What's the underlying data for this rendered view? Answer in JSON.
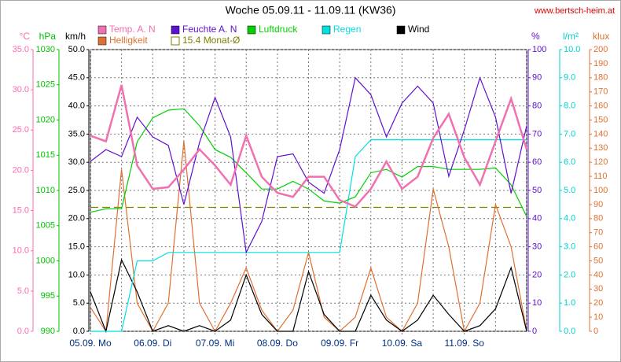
{
  "chart_data": {
    "type": "line",
    "title": "Woche 05.09.11 - 11.09.11 (KW36)",
    "source": "www.bertsch-heim.at",
    "x": [
      0,
      6,
      12,
      18,
      24,
      30,
      36,
      42,
      48,
      54,
      60,
      66,
      72,
      78,
      84,
      90,
      96,
      102,
      108,
      114,
      120,
      126,
      132,
      138,
      144,
      150,
      156,
      162,
      168
    ],
    "xlim": [
      0,
      168
    ],
    "xticks": [
      {
        "value": 0,
        "label": "05.09. Mo"
      },
      {
        "value": 24,
        "label": "06.09. Di"
      },
      {
        "value": 48,
        "label": "07.09. Mi"
      },
      {
        "value": 72,
        "label": "08.09. Do"
      },
      {
        "value": 96,
        "label": "09.09. Fr"
      },
      {
        "value": 120,
        "label": "10.09. Sa"
      },
      {
        "value": 144,
        "label": "11.09. So"
      }
    ],
    "xgrid": [
      12,
      36,
      60,
      84,
      108,
      132,
      156,
      168
    ],
    "grid": true,
    "grid_axis": 2,
    "axes": [
      {
        "label": "°C",
        "color": "#ff69b4",
        "lim": [
          0,
          35
        ],
        "ticks": [
          {
            "value": 0,
            "label": "0.0"
          },
          {
            "value": 5,
            "label": "5.0"
          },
          {
            "value": 10,
            "label": "10.0"
          },
          {
            "value": 15,
            "label": "15.0"
          },
          {
            "value": 20,
            "label": "20.0"
          },
          {
            "value": 25,
            "label": "25.0"
          },
          {
            "value": 30,
            "label": "30.0"
          },
          {
            "value": 35,
            "label": "35.0"
          }
        ]
      },
      {
        "label": "hPa",
        "color": "#00c000",
        "lim": [
          990,
          1030
        ],
        "ticks": [
          990,
          995,
          1000,
          1005,
          1010,
          1015,
          1020,
          1025,
          1030
        ]
      },
      {
        "label": "km/h",
        "color": "#000000",
        "lim": [
          0,
          50
        ],
        "ticks": [
          {
            "value": 0,
            "label": "0.0"
          },
          {
            "value": 5,
            "label": "5.0"
          },
          {
            "value": 10,
            "label": "10.0"
          },
          {
            "value": 15,
            "label": "15.0"
          },
          {
            "value": 20,
            "label": "20.0"
          },
          {
            "value": 25,
            "label": "25.0"
          },
          {
            "value": 30,
            "label": "30.0"
          },
          {
            "value": 35,
            "label": "35.0"
          },
          {
            "value": 40,
            "label": "40.0"
          },
          {
            "value": 45,
            "label": "45.0"
          },
          {
            "value": 50,
            "label": "50.0"
          }
        ]
      },
      {
        "label": "%",
        "color": "#6010d0",
        "lim": [
          0,
          100
        ],
        "ticks": [
          0,
          10,
          20,
          30,
          40,
          50,
          60,
          70,
          80,
          90,
          100
        ]
      },
      {
        "label": "l/m²",
        "color": "#00d0d0",
        "lim": [
          0,
          10
        ],
        "ticks": [
          {
            "value": 0,
            "label": "0.0"
          },
          {
            "value": 1,
            "label": "1.0"
          },
          {
            "value": 2,
            "label": "2.0"
          },
          {
            "value": 3,
            "label": "3.0"
          },
          {
            "value": 4,
            "label": "4.0"
          },
          {
            "value": 5,
            "label": "5.0"
          },
          {
            "value": 6,
            "label": "6.0"
          },
          {
            "value": 7,
            "label": "7.0"
          },
          {
            "value": 8,
            "label": "8.0"
          },
          {
            "value": 9,
            "label": "9.0"
          },
          {
            "value": 10,
            "label": "10.0"
          }
        ]
      },
      {
        "label": "klux",
        "color": "#e07030",
        "lim": [
          0,
          200
        ],
        "ticks": [
          0,
          10,
          20,
          30,
          40,
          50,
          60,
          70,
          80,
          90,
          100,
          110,
          120,
          130,
          140,
          150,
          160,
          170,
          180,
          190,
          200
        ]
      }
    ],
    "series": [
      {
        "name": "Temp. A. N",
        "color": "#f070b0",
        "axis": 0,
        "values": [
          24.3,
          23.6,
          30.6,
          20.6,
          17.7,
          17.9,
          20.1,
          22.6,
          20.6,
          18.2,
          24.3,
          19.2,
          17.2,
          16.7,
          19.2,
          19.2,
          16.3,
          15.5,
          17.7,
          21.1,
          17.7,
          19.2,
          24.0,
          27.0,
          21.6,
          18.2,
          23.6,
          28.9,
          22.6
        ]
      },
      {
        "name": "Feuchte A. N",
        "color": "#6010d0",
        "axis": 3,
        "values": [
          60.3,
          64.5,
          62,
          76,
          69,
          66,
          45,
          67,
          83,
          69,
          28,
          39,
          62,
          63,
          53,
          49,
          64.5,
          90,
          84,
          69,
          81,
          87,
          81,
          55,
          71.5,
          90,
          76,
          49,
          73
        ]
      },
      {
        "name": "Luftdruck",
        "color": "#00d000",
        "axis": 1,
        "values": [
          1006.9,
          1007.4,
          1007.4,
          1016.9,
          1020.3,
          1021.4,
          1021.6,
          1019.2,
          1015.8,
          1014.7,
          1012.5,
          1010.2,
          1010.2,
          1011.3,
          1010.2,
          1008.5,
          1008.2,
          1009.1,
          1012.5,
          1013,
          1011.9,
          1013.4,
          1013.4,
          1013,
          1013,
          1013,
          1013.2,
          1010.8,
          1006.3
        ]
      },
      {
        "name": "Regen",
        "color": "#00e0e0",
        "axis": 4,
        "values": [
          0,
          0,
          0,
          2.5,
          2.5,
          2.8,
          2.8,
          2.8,
          2.8,
          2.8,
          2.8,
          2.8,
          2.8,
          2.8,
          2.8,
          2.8,
          2.8,
          6.2,
          6.8,
          6.8,
          6.8,
          6.8,
          6.8,
          6.8,
          6.8,
          6.8,
          6.8,
          6.8,
          6.8
        ]
      },
      {
        "name": "Wind",
        "color": "#000000",
        "axis": 2,
        "values": [
          7,
          0,
          12.7,
          7,
          0,
          1,
          0,
          1,
          0,
          2,
          10,
          3,
          0,
          0,
          10.6,
          3,
          0,
          0,
          6.4,
          2,
          0,
          2,
          6.4,
          3,
          0,
          1,
          4,
          11.3,
          0
        ]
      },
      {
        "name": "Helligkeit",
        "color": "#e07030",
        "axis": 5,
        "values": [
          17,
          0,
          115,
          20,
          0,
          20,
          135,
          20,
          0,
          20,
          45,
          15,
          0,
          15,
          56,
          10,
          0,
          10,
          45,
          10,
          0,
          20,
          101,
          60,
          0,
          20,
          90,
          60,
          0
        ]
      }
    ],
    "reference": {
      "name": "15.4 Monat-Ø",
      "value": 15.4,
      "axis": 0,
      "color": "#808000"
    }
  }
}
